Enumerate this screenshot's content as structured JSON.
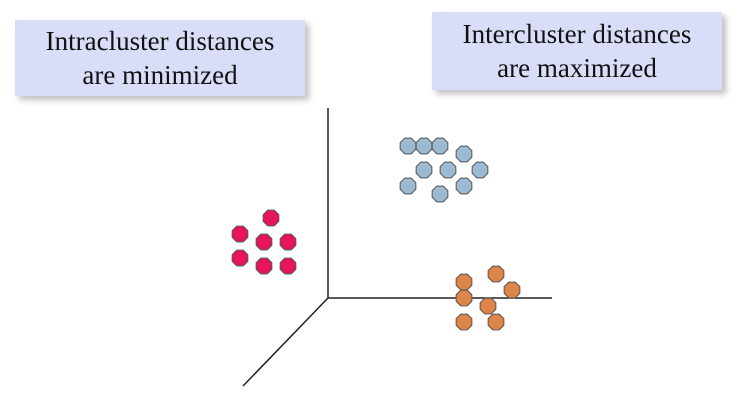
{
  "labels": {
    "intracluster": {
      "line1": "Intracluster distances",
      "line2": "are minimized"
    },
    "intercluster": {
      "line1": "Intercluster distances",
      "line2": "are maximized"
    }
  },
  "colors": {
    "label_background": "#d9ddf8",
    "axis": "#222222",
    "cluster_pink": "#e6145a",
    "cluster_blue": "#9bbad4",
    "cluster_orange": "#e0854a",
    "point_outline": "#555555"
  },
  "clusters": [
    {
      "name_key": "pink-cluster",
      "color_key": "cluster_pink",
      "point_count": 7
    },
    {
      "name_key": "blue-cluster",
      "color_key": "cluster_blue",
      "point_count": 10
    },
    {
      "name_key": "orange-cluster",
      "color_key": "cluster_orange",
      "point_count": 8
    }
  ]
}
